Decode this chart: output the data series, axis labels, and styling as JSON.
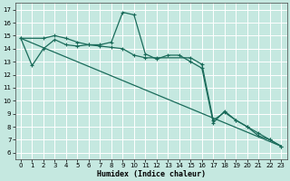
{
  "xlabel": "Humidex (Indice chaleur)",
  "bg_color": "#c5e8e0",
  "grid_color": "#ffffff",
  "line_color": "#1a6b5a",
  "xlim": [
    -0.5,
    23.5
  ],
  "ylim": [
    5.5,
    17.5
  ],
  "yticks": [
    6,
    7,
    8,
    9,
    10,
    11,
    12,
    13,
    14,
    15,
    16,
    17
  ],
  "xticks": [
    0,
    1,
    2,
    3,
    4,
    5,
    6,
    7,
    8,
    9,
    10,
    11,
    12,
    13,
    14,
    15,
    16,
    17,
    18,
    19,
    20,
    21,
    22,
    23
  ],
  "series1_x": [
    0,
    1,
    2,
    3,
    4,
    5,
    6,
    7,
    8,
    9,
    10,
    11,
    12,
    13,
    14,
    15,
    16,
    17,
    18,
    19,
    20,
    21,
    22,
    23
  ],
  "series1_y": [
    14.8,
    12.7,
    14.0,
    14.7,
    14.3,
    14.2,
    14.3,
    14.3,
    14.5,
    16.8,
    16.6,
    13.6,
    13.2,
    13.5,
    13.5,
    13.0,
    12.5,
    8.3,
    9.2,
    8.5,
    8.0,
    7.5,
    7.0,
    6.5
  ],
  "series2_x": [
    0,
    2,
    3,
    4,
    5,
    6,
    7,
    8,
    9,
    10,
    11,
    12,
    15,
    16,
    17,
    18,
    19,
    20,
    21,
    22,
    23
  ],
  "series2_y": [
    14.8,
    14.8,
    15.0,
    14.8,
    14.5,
    14.3,
    14.2,
    14.1,
    14.0,
    13.5,
    13.3,
    13.3,
    13.3,
    12.8,
    8.5,
    9.1,
    8.5,
    8.0,
    7.3,
    7.0,
    6.5
  ],
  "series3_x": [
    0,
    23
  ],
  "series3_y": [
    14.8,
    6.5
  ]
}
